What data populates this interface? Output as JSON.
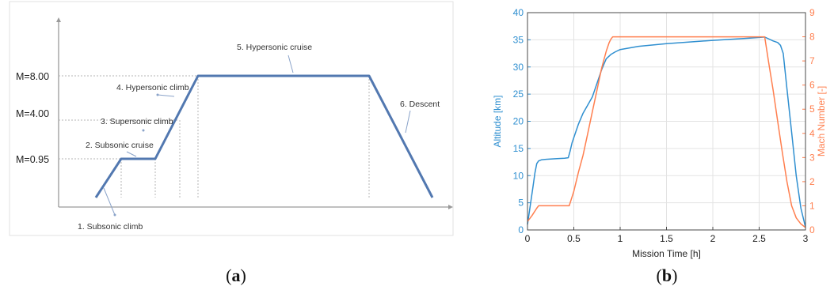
{
  "chart_data": [
    {
      "type": "line",
      "panel": "a",
      "mach_levels": [
        {
          "label": "M=8.00",
          "value": 8.0
        },
        {
          "label": "M=4.00",
          "value": 4.0
        },
        {
          "label": "M=0.95",
          "value": 0.95
        }
      ],
      "phases": [
        "1. Subsonic climb",
        "2. Subsonic cruise",
        "3. Supersonic climb",
        "4. Hypersonic climb",
        "5. Hypersonic cruise",
        "6. Descent"
      ],
      "grid": false
    },
    {
      "type": "line",
      "panel": "b",
      "xlabel": "Mission Time [h]",
      "ylabel": "Altitude [km]",
      "y2label": "Mach Number [-]",
      "xlim": [
        0,
        3
      ],
      "ylim": [
        0,
        40
      ],
      "y2lim": [
        0,
        9
      ],
      "xticks": [
        "0",
        "0.5",
        "1",
        "1.5",
        "2",
        "2.5",
        "3"
      ],
      "yticks": [
        "0",
        "5",
        "10",
        "15",
        "20",
        "25",
        "30",
        "35",
        "40"
      ],
      "y2ticks": [
        "0",
        "1",
        "2",
        "3",
        "4",
        "5",
        "6",
        "7",
        "8",
        "9"
      ],
      "grid": true,
      "series": [
        {
          "axis": "left",
          "color": "#2f8fd0",
          "x": [
            0.0,
            0.03,
            0.06,
            0.08,
            0.1,
            0.12,
            0.15,
            0.2,
            0.3,
            0.4,
            0.44,
            0.46,
            0.48,
            0.5,
            0.55,
            0.6,
            0.65,
            0.7,
            0.75,
            0.8,
            0.85,
            0.9,
            0.95,
            1.0,
            1.2,
            1.5,
            2.0,
            2.4,
            2.56,
            2.6,
            2.65,
            2.7,
            2.73,
            2.76,
            2.8,
            2.85,
            2.9,
            2.95,
            3.0
          ],
          "y": [
            1.0,
            4.5,
            8.0,
            10.5,
            12.2,
            12.7,
            12.9,
            13.0,
            13.1,
            13.2,
            13.3,
            14.5,
            16.0,
            17.0,
            19.5,
            21.5,
            23.0,
            24.5,
            27.0,
            29.5,
            31.5,
            32.3,
            32.8,
            33.2,
            33.8,
            34.3,
            34.9,
            35.3,
            35.5,
            35.2,
            34.8,
            34.5,
            34.0,
            32.5,
            26.0,
            18.0,
            10.0,
            4.0,
            0.5
          ]
        },
        {
          "axis": "right",
          "color": "#ff7f4f",
          "x": [
            0.0,
            0.05,
            0.1,
            0.12,
            0.2,
            0.3,
            0.4,
            0.45,
            0.5,
            0.55,
            0.6,
            0.65,
            0.7,
            0.75,
            0.8,
            0.85,
            0.88,
            0.9,
            0.92,
            1.0,
            1.5,
            2.0,
            2.5,
            2.56,
            2.6,
            2.65,
            2.7,
            2.75,
            2.8,
            2.85,
            2.9,
            2.95,
            3.0
          ],
          "y": [
            0.35,
            0.6,
            0.9,
            1.0,
            1.0,
            1.0,
            1.0,
            1.0,
            1.6,
            2.4,
            3.1,
            4.0,
            4.9,
            5.8,
            6.7,
            7.4,
            7.75,
            7.9,
            8.0,
            8.0,
            8.0,
            8.0,
            8.0,
            8.0,
            7.0,
            5.8,
            4.5,
            3.2,
            2.0,
            1.0,
            0.5,
            0.25,
            0.1
          ]
        }
      ]
    }
  ],
  "captions": {
    "a": "a",
    "b": "b"
  }
}
